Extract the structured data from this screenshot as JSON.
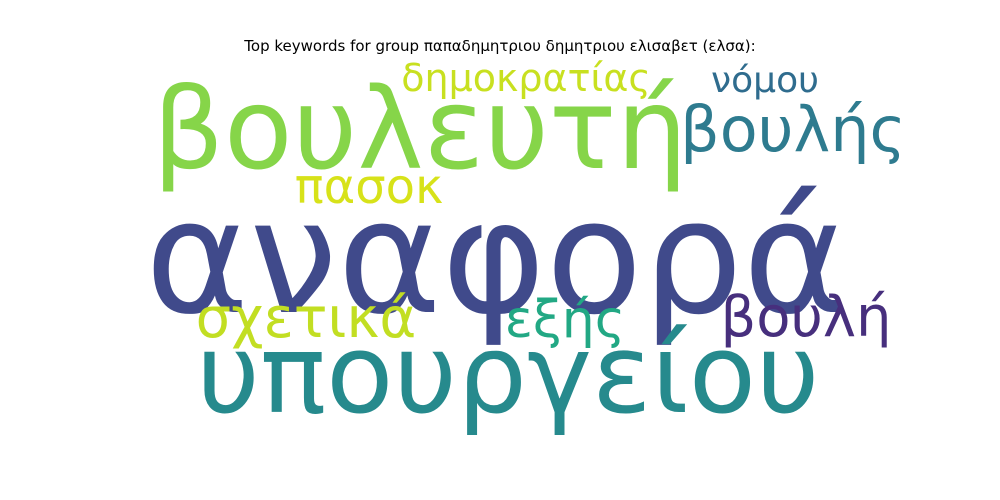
{
  "chart_data": {
    "type": "wordcloud",
    "title": "Top keywords for group παπαδημητριου δημητριου ελισαβετ (ελσα):",
    "words": [
      {
        "text": "αναφορά",
        "weight": 100,
        "color": "#404a8b"
      },
      {
        "text": "υπουργείου",
        "weight": 88,
        "color": "#268a8d"
      },
      {
        "text": "βουλευτή",
        "weight": 82,
        "color": "#86d549"
      },
      {
        "text": "βουλής",
        "weight": 42,
        "color": "#2e7b8f"
      },
      {
        "text": "σχετικά",
        "weight": 40,
        "color": "#c2de22"
      },
      {
        "text": "βουλή",
        "weight": 38,
        "color": "#472f7d"
      },
      {
        "text": "πασοκ",
        "weight": 36,
        "color": "#d7e219"
      },
      {
        "text": "εξής",
        "weight": 35,
        "color": "#22a884"
      },
      {
        "text": "δημοκρατίας",
        "weight": 34,
        "color": "#c8e020"
      },
      {
        "text": "νόμου",
        "weight": 33,
        "color": "#2f6c8e"
      }
    ]
  }
}
